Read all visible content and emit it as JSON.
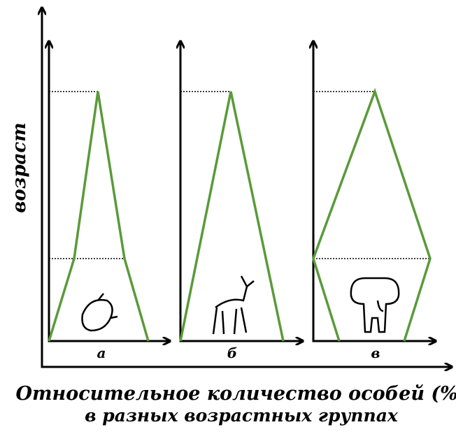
{
  "y_axis_label": "возраст",
  "panels": [
    {
      "label": "а"
    },
    {
      "label": "б"
    },
    {
      "label": "в"
    }
  ],
  "caption": {
    "line1": "Относительное количество особей (%)",
    "line2": "в разных возрастных группах"
  }
}
